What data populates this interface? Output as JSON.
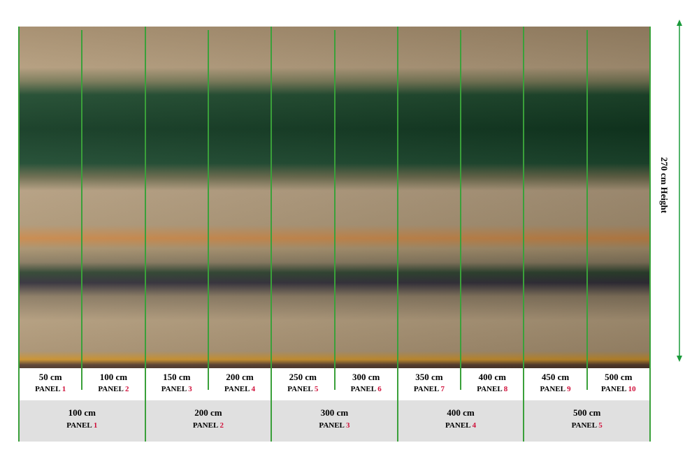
{
  "height_label": "270 cm Height",
  "small_panels": [
    {
      "width": "50 cm",
      "label": "PANEL",
      "number": "1"
    },
    {
      "width": "100 cm",
      "label": "PANEL",
      "number": "2"
    },
    {
      "width": "150 cm",
      "label": "PANEL",
      "number": "3"
    },
    {
      "width": "200 cm",
      "label": "PANEL",
      "number": "4"
    },
    {
      "width": "250 cm",
      "label": "PANEL",
      "number": "5"
    },
    {
      "width": "300 cm",
      "label": "PANEL",
      "number": "6"
    },
    {
      "width": "350 cm",
      "label": "PANEL",
      "number": "7"
    },
    {
      "width": "400 cm",
      "label": "PANEL",
      "number": "8"
    },
    {
      "width": "450 cm",
      "label": "PANEL",
      "number": "9"
    },
    {
      "width": "500 cm",
      "label": "PANEL",
      "number": "10"
    }
  ],
  "large_panels": [
    {
      "width": "100 cm",
      "label": "PANEL",
      "number": "1"
    },
    {
      "width": "200 cm",
      "label": "PANEL",
      "number": "2"
    },
    {
      "width": "300 cm",
      "label": "PANEL",
      "number": "3"
    },
    {
      "width": "400 cm",
      "label": "PANEL",
      "number": "4"
    },
    {
      "width": "500 cm",
      "label": "PANEL",
      "number": "5"
    }
  ]
}
